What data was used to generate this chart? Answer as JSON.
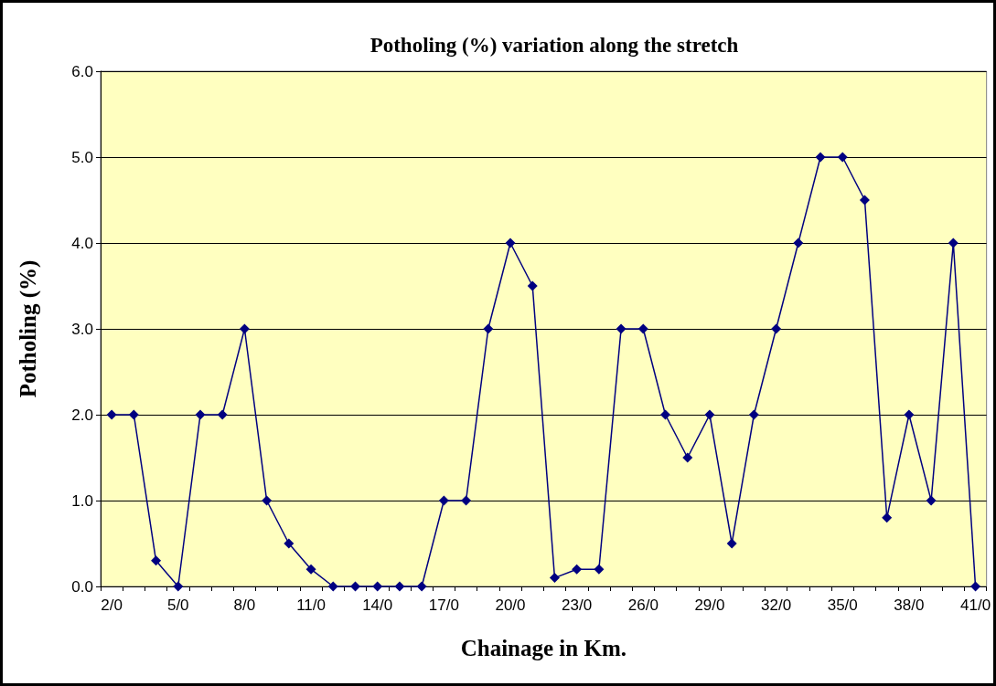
{
  "chart_data": {
    "type": "line",
    "title": "Potholing (%) variation along the stretch",
    "xlabel": "Chainage in Km.",
    "ylabel": "Potholing (%)",
    "categories": [
      "2/0",
      null,
      null,
      "5/0",
      null,
      null,
      "8/0",
      null,
      null,
      "11/0",
      null,
      null,
      "14/0",
      null,
      null,
      "17/0",
      null,
      null,
      "20/0",
      null,
      null,
      "23/0",
      null,
      null,
      "26/0",
      null,
      null,
      "29/0",
      null,
      null,
      "32/0",
      null,
      null,
      "35/0",
      null,
      null,
      "38/0",
      null,
      null,
      "41/0"
    ],
    "series": [
      {
        "color": "#000080",
        "values": [
          2.0,
          2.0,
          0.3,
          0,
          2.0,
          2.0,
          3.0,
          1.0,
          0.5,
          0.2,
          0,
          0,
          0,
          0,
          0,
          1.0,
          1.0,
          3.0,
          4.0,
          3.5,
          0.1,
          0.2,
          0.2,
          3.0,
          3.0,
          2.0,
          1.5,
          2.0,
          0.5,
          2.0,
          3.0,
          4.0,
          5.0,
          5.0,
          4.5,
          0.8,
          2.0,
          1.0,
          4.0,
          0
        ]
      }
    ],
    "ylim": [
      0,
      6
    ],
    "yticks": [
      {
        "value": 0,
        "label": "0.0"
      },
      {
        "value": 1,
        "label": "1.0"
      },
      {
        "value": 2,
        "label": "2.0"
      },
      {
        "value": 3,
        "label": "3.0"
      },
      {
        "value": 4,
        "label": "4.0"
      },
      {
        "value": 5,
        "label": "5.0"
      },
      {
        "value": 6,
        "label": "6.0"
      }
    ],
    "grid": "y",
    "marker": "diamond",
    "line_style": "solid"
  }
}
